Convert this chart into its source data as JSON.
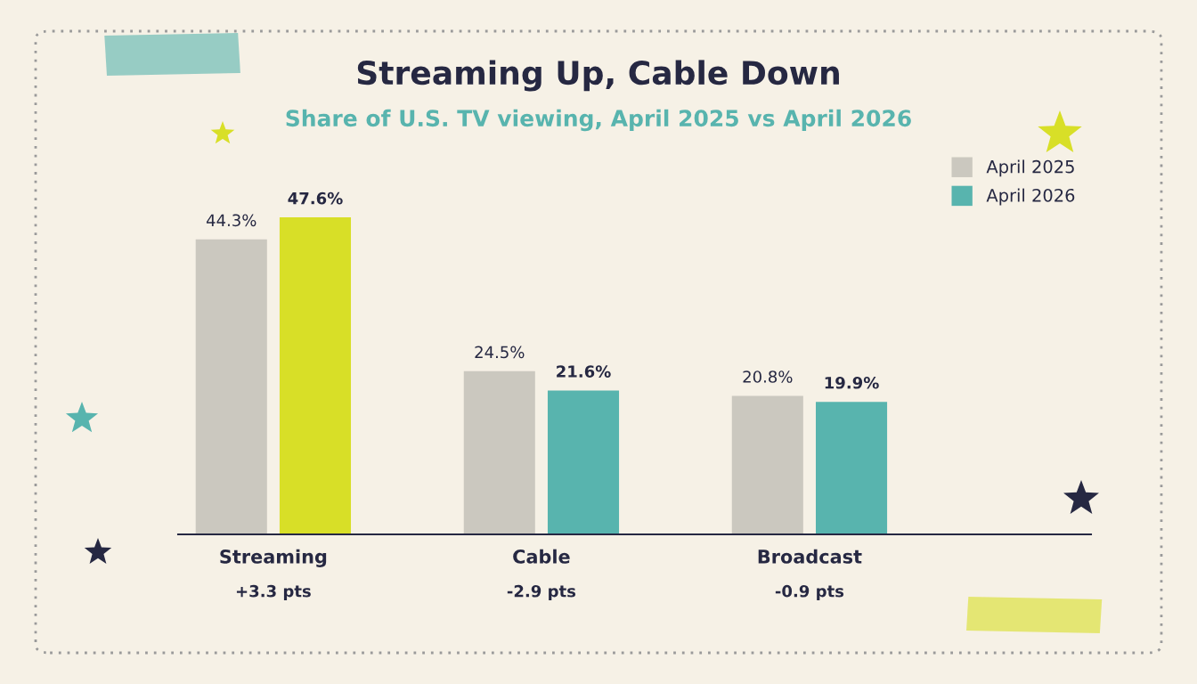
{
  "chart_data": {
    "type": "bar",
    "title": "Streaming Up, Cable Down",
    "subtitle": "Share of U.S. TV viewing, April 2025 vs April 2026",
    "categories": [
      "Streaming",
      "Cable",
      "Broadcast"
    ],
    "series": [
      {
        "name": "April 2025",
        "color": "#cbc8bf",
        "values": [
          44.3,
          24.5,
          20.8
        ],
        "value_labels": [
          "44.3%",
          "24.5%",
          "20.8%"
        ]
      },
      {
        "name": "April 2026",
        "color": "#58b4ae",
        "colors": [
          "#d8df27",
          "#58b4ae",
          "#58b4ae"
        ],
        "values": [
          47.6,
          21.6,
          19.9
        ],
        "value_labels": [
          "47.6%",
          "21.6%",
          "19.9%"
        ]
      }
    ],
    "annotations": [
      "+3.3 pts",
      "-2.9 pts",
      "-0.9 pts"
    ],
    "legend": "top right",
    "grid": false
  }
}
